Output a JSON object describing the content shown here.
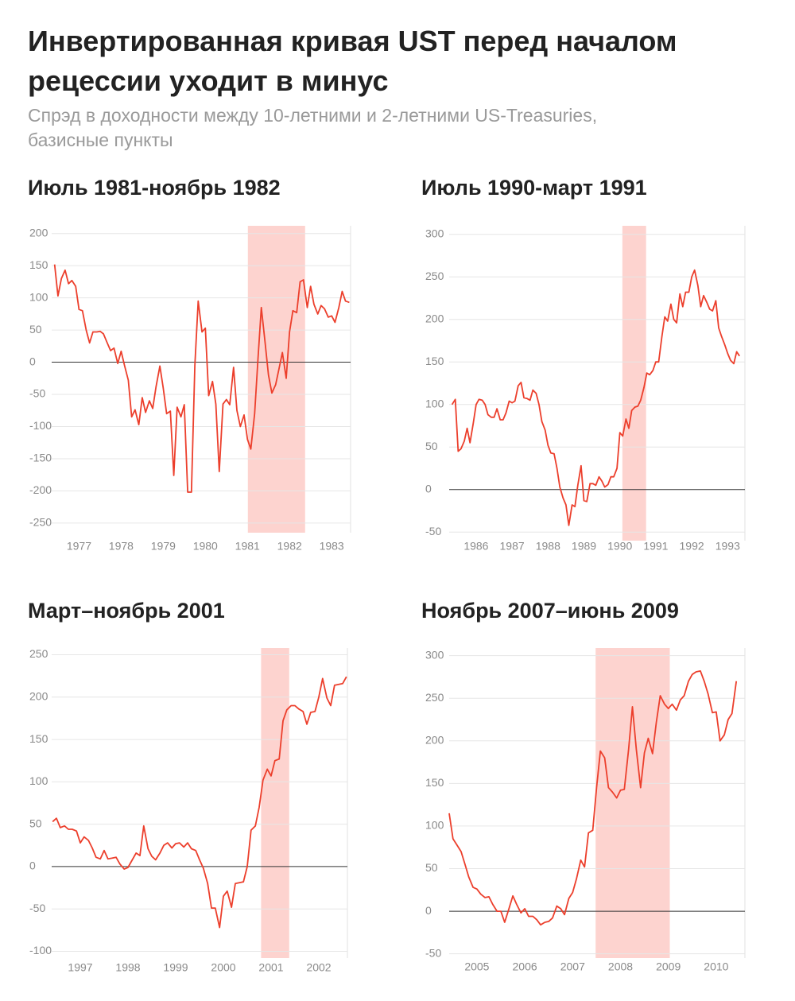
{
  "title": "Инвертированная кривая UST перед началом рецессии уходит в минус",
  "subtitle": "Спрэд в доходности между 10-летними и 2-летними US-Treasuries, базисные пункты",
  "chart_data": [
    {
      "type": "line",
      "title": "Июль 1981-ноябрь 1982",
      "color": "#ec3f2c",
      "grid": true,
      "highlight": [
        1981.51,
        1982.87
      ],
      "highlight_color": "#fdd3cf",
      "xlim": [
        1976.85,
        1983.95
      ],
      "ylim": [
        -265,
        212
      ],
      "yticks": [
        -250,
        -200,
        -150,
        -100,
        -50,
        0,
        50,
        100,
        150,
        200
      ],
      "xticks": [
        {
          "value": 1977.5,
          "label": "1977"
        },
        {
          "value": 1978.5,
          "label": "1978"
        },
        {
          "value": 1979.5,
          "label": "1979"
        },
        {
          "value": 1980.5,
          "label": "1980"
        },
        {
          "value": 1981.5,
          "label": "1981"
        },
        {
          "value": 1982.5,
          "label": "1982"
        },
        {
          "value": 1983.5,
          "label": "1983"
        }
      ],
      "x": [
        1976.92,
        1977,
        1977.08,
        1977.17,
        1977.25,
        1977.33,
        1977.42,
        1977.5,
        1977.58,
        1977.67,
        1977.75,
        1977.83,
        1977.92,
        1978,
        1978.08,
        1978.17,
        1978.25,
        1978.33,
        1978.42,
        1978.5,
        1978.58,
        1978.67,
        1978.75,
        1978.83,
        1978.92,
        1979,
        1979.08,
        1979.17,
        1979.25,
        1979.33,
        1979.42,
        1979.5,
        1979.58,
        1979.67,
        1979.75,
        1979.83,
        1979.92,
        1980,
        1980.08,
        1980.17,
        1980.25,
        1980.33,
        1980.42,
        1980.5,
        1980.58,
        1980.67,
        1980.75,
        1980.83,
        1980.92,
        1981,
        1981.08,
        1981.17,
        1981.25,
        1981.33,
        1981.42,
        1981.5,
        1981.58,
        1981.67,
        1981.75,
        1981.83,
        1981.92,
        1982,
        1982.08,
        1982.17,
        1982.25,
        1982.33,
        1982.42,
        1982.5,
        1982.58,
        1982.67,
        1982.75,
        1982.83,
        1982.92,
        1983,
        1983.08,
        1983.17,
        1983.25,
        1983.33,
        1983.42,
        1983.5,
        1983.58,
        1983.67,
        1983.75,
        1983.83,
        1983.92
      ],
      "values": [
        152,
        103,
        130,
        143,
        122,
        127,
        118,
        82,
        80,
        50,
        30,
        47,
        47,
        48,
        44,
        30,
        18,
        22,
        -2,
        17,
        -5,
        -28,
        -85,
        -74,
        -97,
        -55,
        -78,
        -60,
        -72,
        -38,
        -6,
        -40,
        -80,
        -76,
        -176,
        -70,
        -85,
        -66,
        -202,
        -202,
        -5,
        95,
        47,
        53,
        -52,
        -30,
        -65,
        -170,
        -65,
        -58,
        -66,
        -8,
        -75,
        -100,
        -82,
        -120,
        -135,
        -80,
        5,
        85,
        30,
        -20,
        -48,
        -35,
        -10,
        15,
        -25,
        47,
        80,
        77,
        125,
        128,
        85,
        118,
        90,
        75,
        88,
        83,
        70,
        72,
        62,
        85,
        110,
        95,
        93
      ]
    },
    {
      "type": "line",
      "title": "Июль 1990-март 1991",
      "color": "#ec3f2c",
      "grid": true,
      "highlight": [
        1990.57,
        1991.23
      ],
      "highlight_color": "#fdd3cf",
      "xlim": [
        1985.75,
        1993.98
      ],
      "ylim": [
        -60,
        310
      ],
      "yticks": [
        -50,
        0,
        50,
        100,
        150,
        200,
        250,
        300
      ],
      "xticks": [
        {
          "value": 1986.5,
          "label": "1986"
        },
        {
          "value": 1987.5,
          "label": "1987"
        },
        {
          "value": 1988.5,
          "label": "1988"
        },
        {
          "value": 1989.5,
          "label": "1989"
        },
        {
          "value": 1990.5,
          "label": "1990"
        },
        {
          "value": 1991.5,
          "label": "1991"
        },
        {
          "value": 1992.5,
          "label": "1992"
        },
        {
          "value": 1993.5,
          "label": "1993"
        }
      ],
      "x": [
        1985.83,
        1985.92,
        1986,
        1986.08,
        1986.17,
        1986.25,
        1986.33,
        1986.42,
        1986.5,
        1986.58,
        1986.67,
        1986.75,
        1986.83,
        1986.92,
        1987,
        1987.08,
        1987.17,
        1987.25,
        1987.33,
        1987.42,
        1987.5,
        1987.58,
        1987.67,
        1987.75,
        1987.83,
        1987.92,
        1988,
        1988.08,
        1988.17,
        1988.25,
        1988.33,
        1988.42,
        1988.5,
        1988.58,
        1988.67,
        1988.75,
        1988.83,
        1988.92,
        1989,
        1989.08,
        1989.17,
        1989.25,
        1989.33,
        1989.42,
        1989.5,
        1989.58,
        1989.67,
        1989.75,
        1989.83,
        1989.92,
        1990,
        1990.08,
        1990.17,
        1990.25,
        1990.33,
        1990.42,
        1990.5,
        1990.58,
        1990.67,
        1990.75,
        1990.83,
        1990.92,
        1991,
        1991.08,
        1991.17,
        1991.25,
        1991.33,
        1991.42,
        1991.5,
        1991.58,
        1991.67,
        1991.75,
        1991.83,
        1991.92,
        1992,
        1992.08,
        1992.17,
        1992.25,
        1992.33,
        1992.42,
        1992.5,
        1992.58,
        1992.67,
        1992.75,
        1992.83,
        1992.92,
        1993,
        1993.08,
        1993.17,
        1993.25,
        1993.33,
        1993.42,
        1993.5,
        1993.58,
        1993.67,
        1993.75,
        1993.83
      ],
      "values": [
        100,
        106,
        45,
        48,
        57,
        72,
        55,
        78,
        100,
        106,
        105,
        100,
        88,
        85,
        85,
        95,
        82,
        82,
        90,
        104,
        102,
        104,
        122,
        126,
        108,
        107,
        105,
        117,
        113,
        100,
        80,
        70,
        52,
        43,
        42,
        25,
        3,
        -10,
        -18,
        -42,
        -18,
        -20,
        5,
        28,
        -13,
        -14,
        7,
        7,
        5,
        15,
        10,
        3,
        6,
        15,
        15,
        25,
        67,
        63,
        83,
        72,
        93,
        97,
        98,
        105,
        120,
        137,
        135,
        140,
        150,
        150,
        180,
        203,
        198,
        218,
        200,
        196,
        230,
        215,
        232,
        232,
        250,
        258,
        240,
        215,
        228,
        220,
        212,
        210,
        222,
        190,
        180,
        170,
        160,
        152,
        148,
        162,
        157
      ]
    },
    {
      "type": "line",
      "title": "Март–ноябрь 2001",
      "color": "#ec3f2c",
      "grid": true,
      "highlight": [
        2001.29,
        2001.88
      ],
      "highlight_color": "#fdd3cf",
      "xlim": [
        1996.9,
        2003.1
      ],
      "ylim": [
        -108,
        258
      ],
      "yticks": [
        -100,
        -50,
        0,
        50,
        100,
        150,
        200,
        250
      ],
      "xticks": [
        {
          "value": 1997.5,
          "label": "1997"
        },
        {
          "value": 1998.5,
          "label": "1998"
        },
        {
          "value": 1999.5,
          "label": "1999"
        },
        {
          "value": 2000.5,
          "label": "2000"
        },
        {
          "value": 2001.5,
          "label": "2001"
        },
        {
          "value": 2002.5,
          "label": "2002"
        }
      ],
      "x": [
        1996.92,
        1997,
        1997.08,
        1997.17,
        1997.25,
        1997.33,
        1997.42,
        1997.5,
        1997.58,
        1997.67,
        1997.75,
        1997.83,
        1997.92,
        1998,
        1998.08,
        1998.17,
        1998.25,
        1998.33,
        1998.42,
        1998.5,
        1998.58,
        1998.67,
        1998.75,
        1998.83,
        1998.92,
        1999,
        1999.08,
        1999.17,
        1999.25,
        1999.33,
        1999.42,
        1999.5,
        1999.58,
        1999.67,
        1999.75,
        1999.83,
        1999.92,
        2000,
        2000.08,
        2000.17,
        2000.25,
        2000.33,
        2000.42,
        2000.5,
        2000.58,
        2000.67,
        2000.75,
        2000.83,
        2000.92,
        2001,
        2001.08,
        2001.17,
        2001.25,
        2001.33,
        2001.42,
        2001.5,
        2001.58,
        2001.67,
        2001.75,
        2001.83,
        2001.92,
        2002,
        2002.08,
        2002.17,
        2002.25,
        2002.33,
        2002.42,
        2002.5,
        2002.58,
        2002.67,
        2002.75,
        2002.83,
        2002.92,
        2003,
        2003.08
      ],
      "values": [
        53,
        57,
        46,
        48,
        44,
        44,
        42,
        28,
        35,
        31,
        22,
        11,
        9,
        19,
        9,
        10,
        11,
        3,
        -3,
        -1,
        7,
        16,
        13,
        48,
        21,
        12,
        8,
        16,
        25,
        28,
        22,
        27,
        28,
        23,
        28,
        21,
        19,
        8,
        -2,
        -20,
        -49,
        -49,
        -72,
        -35,
        -29,
        -48,
        -20,
        -19,
        -18,
        0,
        43,
        48,
        70,
        102,
        115,
        107,
        125,
        127,
        172,
        185,
        190,
        190,
        186,
        183,
        168,
        182,
        183,
        200,
        222,
        199,
        190,
        214,
        215,
        216,
        224
      ]
    },
    {
      "type": "line",
      "title": "Ноябрь 2007–июнь 2009",
      "color": "#ec3f2c",
      "grid": true,
      "highlight": [
        2007.98,
        2009.53
      ],
      "highlight_color": "#fdd3cf",
      "xlim": [
        2004.92,
        2011.1
      ],
      "ylim": [
        -55,
        309
      ],
      "yticks": [
        -50,
        0,
        50,
        100,
        150,
        200,
        250,
        300
      ],
      "xticks": [
        {
          "value": 2005.5,
          "label": "2005"
        },
        {
          "value": 2006.5,
          "label": "2006"
        },
        {
          "value": 2007.5,
          "label": "2007"
        },
        {
          "value": 2008.5,
          "label": "2008"
        },
        {
          "value": 2009.5,
          "label": "2009"
        },
        {
          "value": 2010.5,
          "label": "2010"
        }
      ],
      "x": [
        2004.92,
        2005,
        2005.08,
        2005.17,
        2005.25,
        2005.33,
        2005.42,
        2005.5,
        2005.58,
        2005.67,
        2005.75,
        2005.83,
        2005.92,
        2006,
        2006.08,
        2006.17,
        2006.25,
        2006.33,
        2006.42,
        2006.5,
        2006.58,
        2006.67,
        2006.75,
        2006.83,
        2006.92,
        2007,
        2007.08,
        2007.17,
        2007.25,
        2007.33,
        2007.42,
        2007.5,
        2007.58,
        2007.67,
        2007.75,
        2007.83,
        2007.92,
        2008,
        2008.08,
        2008.17,
        2008.25,
        2008.33,
        2008.42,
        2008.5,
        2008.58,
        2008.67,
        2008.75,
        2008.83,
        2008.92,
        2009,
        2009.08,
        2009.17,
        2009.25,
        2009.33,
        2009.42,
        2009.5,
        2009.58,
        2009.67,
        2009.75,
        2009.83,
        2009.92,
        2010,
        2010.08,
        2010.17,
        2010.25,
        2010.33,
        2010.42,
        2010.5,
        2010.58,
        2010.67,
        2010.75,
        2010.83,
        2010.92
      ],
      "values": [
        115,
        85,
        78,
        70,
        55,
        40,
        28,
        26,
        20,
        16,
        17,
        8,
        0,
        0,
        -13,
        3,
        18,
        8,
        -2,
        3,
        -6,
        -6,
        -10,
        -16,
        -13,
        -12,
        -8,
        6,
        3,
        -4,
        15,
        22,
        38,
        60,
        52,
        92,
        95,
        145,
        188,
        180,
        145,
        140,
        133,
        142,
        143,
        190,
        240,
        190,
        145,
        186,
        203,
        185,
        222,
        253,
        243,
        238,
        243,
        236,
        248,
        253,
        270,
        278,
        281,
        282,
        270,
        255,
        233,
        234,
        200,
        207,
        225,
        232,
        270
      ]
    }
  ]
}
